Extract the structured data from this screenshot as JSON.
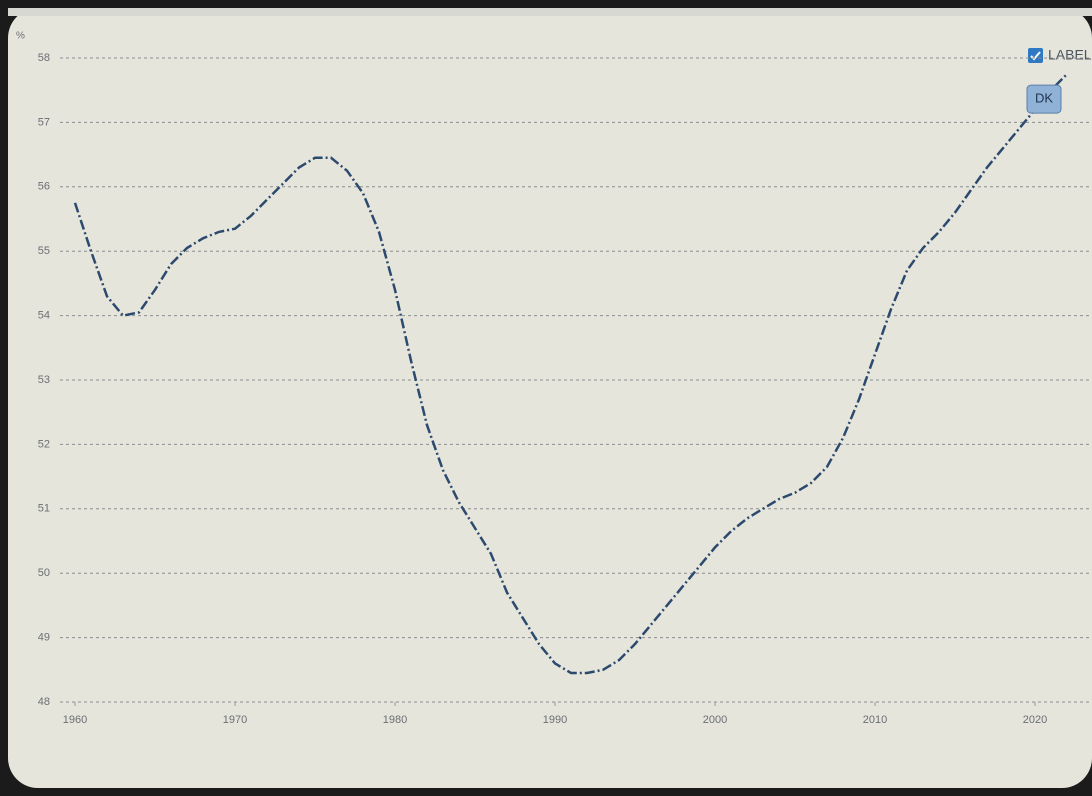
{
  "chart_data": {
    "type": "line",
    "y_unit_label": "%",
    "legend_checkbox_label": "LABEL",
    "x": [
      1960,
      1961,
      1962,
      1963,
      1964,
      1965,
      1966,
      1967,
      1968,
      1969,
      1970,
      1971,
      1972,
      1973,
      1974,
      1975,
      1976,
      1977,
      1978,
      1979,
      1980,
      1981,
      1982,
      1983,
      1984,
      1985,
      1986,
      1987,
      1988,
      1989,
      1990,
      1991,
      1992,
      1993,
      1994,
      1995,
      1996,
      1997,
      1998,
      1999,
      2000,
      2001,
      2002,
      2003,
      2004,
      2005,
      2006,
      2007,
      2008,
      2009,
      2010,
      2011,
      2012,
      2013,
      2014,
      2015,
      2016,
      2017,
      2018,
      2019,
      2020,
      2021,
      2022
    ],
    "series": [
      {
        "name": "DK",
        "color": "#2c4a6e",
        "values": [
          55.75,
          55.0,
          54.3,
          54.0,
          54.05,
          54.4,
          54.8,
          55.05,
          55.2,
          55.3,
          55.35,
          55.55,
          55.8,
          56.05,
          56.3,
          56.45,
          56.45,
          56.25,
          55.9,
          55.3,
          54.4,
          53.3,
          52.3,
          51.6,
          51.1,
          50.7,
          50.3,
          49.7,
          49.3,
          48.9,
          48.6,
          48.45,
          48.45,
          48.5,
          48.65,
          48.9,
          49.2,
          49.5,
          49.8,
          50.1,
          50.4,
          50.65,
          50.85,
          51.0,
          51.15,
          51.25,
          51.4,
          51.65,
          52.1,
          52.7,
          53.4,
          54.1,
          54.7,
          55.05,
          55.3,
          55.6,
          55.95,
          56.3,
          56.6,
          56.9,
          57.2,
          57.5,
          57.75
        ]
      }
    ],
    "xlim": [
      1959,
      2024
    ],
    "xticks": [
      1960,
      1970,
      1980,
      1990,
      2000,
      2010,
      2020
    ],
    "ylim": [
      48,
      58
    ],
    "yticks": [
      48,
      49,
      50,
      51,
      52,
      53,
      54,
      55,
      56,
      57,
      58
    ],
    "grid": true
  }
}
